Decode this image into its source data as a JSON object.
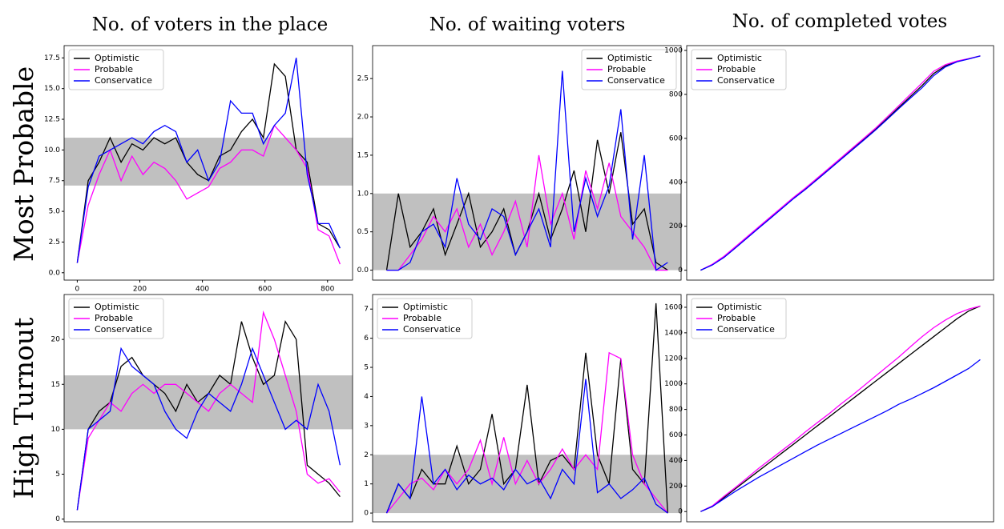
{
  "column_titles": [
    "No. of voters in the place",
    "No. of waiting voters",
    "No. of completed votes"
  ],
  "row_titles": [
    "Most Probable",
    "High Turnout"
  ],
  "chart_data": [
    {
      "type": "line",
      "legend": "upper left",
      "band": [
        7.1,
        11
      ],
      "band_color": "#c0c0c0",
      "x": [
        0,
        35,
        70,
        105,
        140,
        175,
        210,
        245,
        280,
        315,
        350,
        385,
        420,
        455,
        490,
        525,
        560,
        595,
        630,
        665,
        700,
        735,
        770,
        805,
        840
      ],
      "xlim": [
        -42,
        880
      ],
      "xticks": [
        0,
        200,
        400,
        600,
        800
      ],
      "ylim": [
        -0.6,
        18.5
      ],
      "yticks": [
        {
          "value": 0,
          "label": "0.0"
        },
        2.5,
        {
          "value": 5,
          "label": "5.0"
        },
        7.5,
        {
          "value": 10,
          "label": "10.0"
        },
        12.5,
        {
          "value": 15,
          "label": "15.0"
        },
        17.5
      ],
      "series": [
        {
          "name": "Optimistic",
          "color": "#000000",
          "values": [
            0.8,
            7.5,
            9,
            11,
            9,
            10.5,
            10,
            11,
            10.5,
            11,
            9,
            8,
            7.5,
            9.5,
            10,
            11.5,
            12.5,
            11,
            17,
            16,
            10,
            9,
            4,
            3.5,
            2
          ]
        },
        {
          "name": "Probable",
          "color": "#ff00ff",
          "values": [
            0.8,
            5.5,
            8,
            10,
            7.5,
            9.5,
            8,
            9,
            8.5,
            7.5,
            6,
            6.5,
            7,
            8.5,
            9,
            10,
            10,
            9.5,
            12,
            11,
            10,
            8.5,
            3.5,
            3,
            0.7
          ]
        },
        {
          "name": "Conservatice",
          "color": "#0000ff",
          "values": [
            0.8,
            7,
            9.5,
            10,
            10.5,
            11,
            10.5,
            11.5,
            12,
            11.5,
            9,
            10,
            7.5,
            9,
            14,
            13,
            13,
            10.5,
            12,
            13,
            17.5,
            8,
            4,
            4,
            2
          ]
        }
      ]
    },
    {
      "type": "line",
      "legend": "upper right",
      "band": [
        0,
        1
      ],
      "band_color": "#c0c0c0",
      "x": [
        0,
        35,
        70,
        105,
        140,
        175,
        210,
        245,
        280,
        315,
        350,
        385,
        420,
        455,
        490,
        525,
        560,
        595,
        630,
        665,
        700,
        735,
        770,
        805,
        840
      ],
      "xlim": [
        -42,
        880
      ],
      "ylim": [
        -0.13,
        2.93
      ],
      "yticks": [
        {
          "value": 0,
          "label": "0.0"
        },
        0.5,
        {
          "value": 1,
          "label": "1.0"
        },
        1.5,
        {
          "value": 2,
          "label": "2.0"
        },
        2.5
      ],
      "series": [
        {
          "name": "Optimistic",
          "color": "#000000",
          "values": [
            0,
            1,
            0.3,
            0.5,
            0.8,
            0.2,
            0.6,
            1,
            0.3,
            0.5,
            0.8,
            0.2,
            0.5,
            1,
            0.4,
            0.8,
            1.3,
            0.5,
            1.7,
            1,
            1.8,
            0.6,
            0.8,
            0.1,
            0
          ]
        },
        {
          "name": "Probable",
          "color": "#ff00ff",
          "values": [
            0,
            0,
            0.2,
            0.4,
            0.7,
            0.5,
            0.8,
            0.3,
            0.6,
            0.2,
            0.5,
            0.9,
            0.3,
            1.5,
            0.6,
            1,
            0.4,
            1.3,
            0.8,
            1.4,
            0.7,
            0.5,
            0.3,
            0,
            0
          ]
        },
        {
          "name": "Conservatice",
          "color": "#0000ff",
          "values": [
            0,
            0,
            0.1,
            0.5,
            0.6,
            0.3,
            1.2,
            0.6,
            0.4,
            0.8,
            0.7,
            0.2,
            0.5,
            0.8,
            0.3,
            2.6,
            0.5,
            1.2,
            0.7,
            1.1,
            2.1,
            0.4,
            1.5,
            0,
            0.1
          ]
        }
      ]
    },
    {
      "type": "line",
      "legend": "upper left",
      "x": [
        0,
        35,
        70,
        105,
        140,
        175,
        210,
        245,
        280,
        315,
        350,
        385,
        420,
        455,
        490,
        525,
        560,
        595,
        630,
        665,
        700,
        735,
        770,
        805,
        840
      ],
      "xlim": [
        -42,
        880
      ],
      "ylim": [
        -45,
        1022
      ],
      "yticks": [
        0,
        200,
        400,
        600,
        800,
        1000
      ],
      "series": [
        {
          "name": "Optimistic",
          "color": "#000000",
          "values": [
            0,
            25,
            60,
            105,
            150,
            195,
            240,
            285,
            330,
            370,
            415,
            460,
            505,
            550,
            595,
            640,
            690,
            740,
            790,
            840,
            895,
            930,
            950,
            962,
            975
          ]
        },
        {
          "name": "Probable",
          "color": "#ff00ff",
          "values": [
            0,
            27,
            63,
            108,
            153,
            198,
            243,
            288,
            333,
            374,
            419,
            464,
            509,
            555,
            600,
            646,
            697,
            748,
            800,
            852,
            905,
            935,
            952,
            963,
            975
          ]
        },
        {
          "name": "Conservatice",
          "color": "#0000ff",
          "values": [
            0,
            24,
            58,
            102,
            147,
            192,
            237,
            282,
            327,
            368,
            412,
            457,
            502,
            547,
            592,
            637,
            686,
            735,
            783,
            830,
            885,
            925,
            948,
            961,
            975
          ]
        }
      ]
    },
    {
      "type": "line",
      "legend": "upper left",
      "band": [
        10,
        16
      ],
      "band_color": "#c0c0c0",
      "x": [
        0,
        35,
        70,
        105,
        140,
        175,
        210,
        245,
        280,
        315,
        350,
        385,
        420,
        455,
        490,
        525,
        560,
        595,
        630,
        665,
        700,
        735,
        770,
        805,
        840
      ],
      "xlim": [
        -42,
        880
      ],
      "ylim": [
        -0.3,
        25
      ],
      "yticks": [
        0,
        5,
        10,
        15,
        20
      ],
      "series": [
        {
          "name": "Optimistic",
          "color": "#000000",
          "values": [
            1,
            10,
            12,
            13,
            17,
            18,
            16,
            15,
            14,
            12,
            15,
            13,
            14,
            16,
            15,
            22,
            18,
            15,
            16,
            22,
            20,
            6,
            5,
            4,
            2.5
          ]
        },
        {
          "name": "Probable",
          "color": "#ff00ff",
          "values": [
            1,
            9,
            11,
            13,
            12,
            14,
            15,
            14,
            15,
            15,
            14,
            13,
            12,
            14,
            15,
            14,
            13,
            23,
            20,
            16,
            12,
            5,
            4,
            4.5,
            3
          ]
        },
        {
          "name": "Conservatice",
          "color": "#0000ff",
          "values": [
            1,
            10,
            11,
            12,
            19,
            17,
            16,
            15,
            12,
            10,
            9,
            12,
            14,
            13,
            12,
            15,
            19,
            16,
            13,
            10,
            11,
            10,
            15,
            12,
            6
          ]
        }
      ]
    },
    {
      "type": "line",
      "legend": "upper left",
      "band": [
        0,
        2
      ],
      "band_color": "#c0c0c0",
      "x": [
        0,
        35,
        70,
        105,
        140,
        175,
        210,
        245,
        280,
        315,
        350,
        385,
        420,
        455,
        490,
        525,
        560,
        595,
        630,
        665,
        700,
        735,
        770,
        805,
        840
      ],
      "xlim": [
        -42,
        880
      ],
      "ylim": [
        -0.3,
        7.5
      ],
      "yticks": [
        0,
        1,
        2,
        3,
        4,
        5,
        6,
        7
      ],
      "series": [
        {
          "name": "Optimistic",
          "color": "#000000",
          "values": [
            0,
            1,
            0.5,
            1.5,
            1,
            1,
            2.3,
            1,
            1.5,
            3.4,
            1,
            1.5,
            4.4,
            1,
            1.8,
            2,
            1.5,
            5.5,
            2,
            1,
            5.3,
            1.5,
            1,
            7.2,
            0
          ]
        },
        {
          "name": "Probable",
          "color": "#ff00ff",
          "values": [
            0,
            0.5,
            1,
            1.2,
            0.8,
            1.5,
            1,
            1.5,
            2.5,
            1,
            2.6,
            1,
            1.8,
            1,
            1.5,
            2.2,
            1.5,
            2,
            1.5,
            5.5,
            5.3,
            2,
            1,
            0.5,
            0
          ]
        },
        {
          "name": "Conservatice",
          "color": "#0000ff",
          "values": [
            0,
            1,
            0.5,
            4,
            1,
            1.5,
            0.8,
            1.3,
            1,
            1.2,
            0.8,
            1.5,
            1,
            1.2,
            0.5,
            1.5,
            1,
            4.6,
            0.7,
            1,
            0.5,
            0.8,
            1.2,
            0.3,
            0
          ]
        }
      ]
    },
    {
      "type": "line",
      "legend": "upper left",
      "x": [
        0,
        35,
        70,
        105,
        140,
        175,
        210,
        245,
        280,
        315,
        350,
        385,
        420,
        455,
        490,
        525,
        560,
        595,
        630,
        665,
        700,
        735,
        770,
        805,
        840
      ],
      "xlim": [
        -42,
        880
      ],
      "ylim": [
        -80,
        1700
      ],
      "yticks": [
        0,
        200,
        400,
        600,
        800,
        1000,
        1200,
        1400,
        1600
      ],
      "series": [
        {
          "name": "Optimistic",
          "color": "#000000",
          "values": [
            0,
            40,
            110,
            180,
            250,
            320,
            390,
            460,
            530,
            600,
            670,
            740,
            810,
            880,
            950,
            1020,
            1090,
            1160,
            1230,
            1300,
            1370,
            1440,
            1510,
            1570,
            1610
          ]
        },
        {
          "name": "Probable",
          "color": "#ff00ff",
          "values": [
            0,
            45,
            120,
            190,
            265,
            340,
            410,
            480,
            550,
            625,
            695,
            765,
            840,
            910,
            985,
            1060,
            1135,
            1210,
            1290,
            1370,
            1440,
            1500,
            1550,
            1585,
            1610
          ]
        },
        {
          "name": "Conservatice",
          "color": "#0000ff",
          "values": [
            0,
            40,
            100,
            160,
            215,
            270,
            320,
            370,
            420,
            470,
            520,
            565,
            610,
            655,
            700,
            745,
            790,
            840,
            880,
            925,
            970,
            1020,
            1070,
            1120,
            1190
          ]
        }
      ]
    }
  ]
}
